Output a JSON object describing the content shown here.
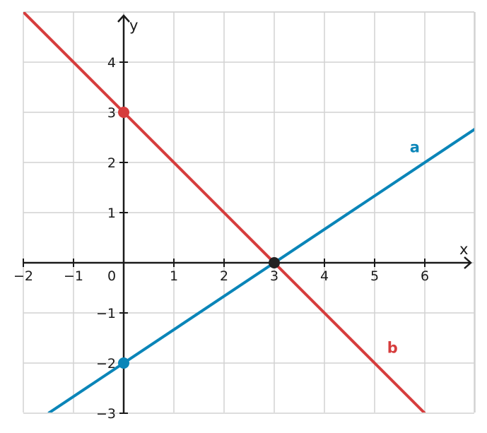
{
  "chart_data": {
    "type": "line",
    "xlim": [
      -2,
      7
    ],
    "ylim": [
      -3,
      5
    ],
    "x_ticks": [
      -2,
      -1,
      0,
      1,
      2,
      3,
      4,
      5,
      6
    ],
    "y_ticks": [
      -3,
      -2,
      -1,
      1,
      2,
      3,
      4
    ],
    "x_tick_labels": [
      "−2",
      "−1",
      "0",
      "1",
      "2",
      "3",
      "4",
      "5",
      "6"
    ],
    "y_tick_labels": [
      "−3",
      "−2",
      "−1",
      "1",
      "2",
      "3",
      "4"
    ],
    "xlabel": "x",
    "ylabel": "y",
    "grid": true,
    "series": [
      {
        "name": "a",
        "color": "#0a85b8",
        "x": [
          -1.5,
          7
        ],
        "y": [
          -3,
          2.6667
        ],
        "label_at": [
          5.7,
          2.3
        ]
      },
      {
        "name": "b",
        "color": "#d63d3d",
        "x": [
          -2,
          6
        ],
        "y": [
          5,
          -3
        ],
        "label_at": [
          5.25,
          -1.7
        ]
      }
    ],
    "points": [
      {
        "x": 0,
        "y": 3,
        "color": "#d63d3d"
      },
      {
        "x": 0,
        "y": -2,
        "color": "#0a85b8"
      },
      {
        "x": 3,
        "y": 0,
        "color": "#222222"
      }
    ]
  }
}
